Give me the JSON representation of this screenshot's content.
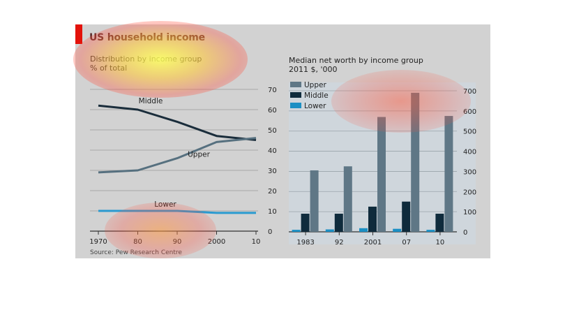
{
  "header": {
    "title": "US household income",
    "source": "Source: Pew Research Centre"
  },
  "left_chart": {
    "subtitle_line1": "Distribution by income group",
    "subtitle_line2": "% of total"
  },
  "right_chart": {
    "subtitle_line1": "Median net worth by income group",
    "subtitle_line2": "2011 $, '000"
  },
  "colors": {
    "upper": "#5f7786",
    "middle": "#0f2b3c",
    "lower": "#1b8fc4",
    "middle_line": "#1a2d3b",
    "upper_line": "#56707f",
    "lower_line": "#2a9ad0",
    "accent": "#e3120b"
  },
  "chart_data": [
    {
      "type": "line",
      "x_tick_labels": [
        "1970",
        "80",
        "90",
        "2000",
        "10"
      ],
      "x": [
        1970,
        1980,
        1990,
        2000,
        2010
      ],
      "ylim": [
        0,
        70
      ],
      "y_ticks": [
        0,
        10,
        20,
        30,
        40,
        50,
        60,
        70
      ],
      "grid": true,
      "series": [
        {
          "name": "Middle",
          "values": [
            62,
            60,
            54,
            47,
            45
          ]
        },
        {
          "name": "Upper",
          "values": [
            29,
            30,
            36,
            44,
            46
          ]
        },
        {
          "name": "Lower",
          "values": [
            10,
            10,
            10,
            9,
            9
          ]
        }
      ]
    },
    {
      "type": "bar",
      "categories": [
        "1983",
        "92",
        "2001",
        "07",
        "10"
      ],
      "ylim": [
        0,
        700
      ],
      "y_ticks": [
        0,
        100,
        200,
        300,
        400,
        500,
        600,
        700
      ],
      "grid": true,
      "legend": "top-left",
      "series": [
        {
          "name": "Upper",
          "values": [
            305,
            325,
            570,
            690,
            575
          ]
        },
        {
          "name": "Middle",
          "values": [
            90,
            90,
            125,
            150,
            90
          ]
        },
        {
          "name": "Lower",
          "values": [
            10,
            12,
            18,
            15,
            10
          ]
        }
      ]
    }
  ]
}
